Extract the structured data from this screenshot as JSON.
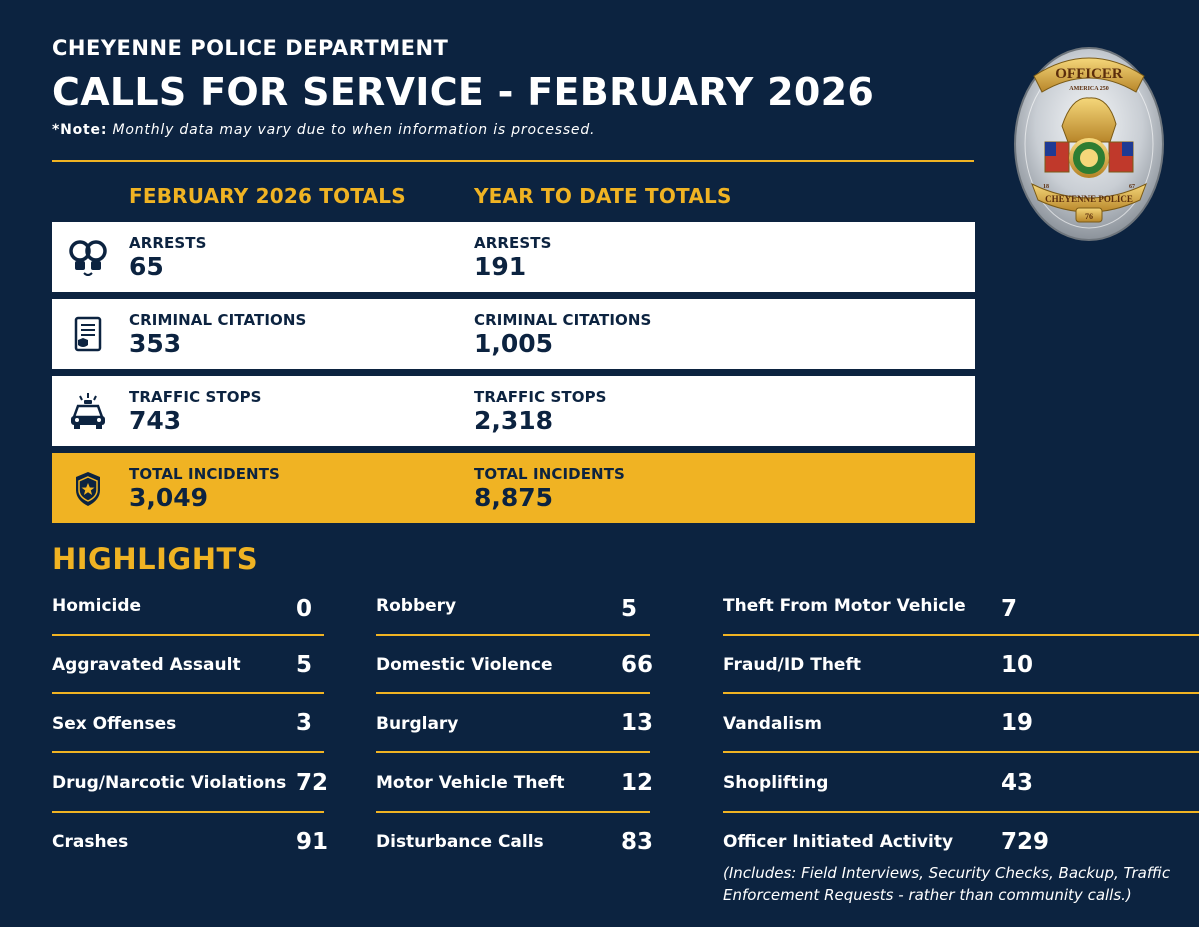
{
  "header": {
    "department": "CHEYENNE POLICE DEPARTMENT",
    "title": "CALLS FOR SERVICE - FEBRUARY 2026",
    "note_label": "*Note:",
    "note_text": "Monthly data may vary due to when information is processed."
  },
  "badge": {
    "top_text": "OFFICER",
    "sub_text": "AMERICA 250",
    "bottom_text": "CHEYENNE POLICE",
    "number": "76",
    "left_year": "18",
    "right_year": "67"
  },
  "totals": {
    "month_heading": "FEBRUARY 2026 TOTALS",
    "ytd_heading": "YEAR TO DATE TOTALS",
    "rows": [
      {
        "icon": "handcuffs-icon",
        "month_label": "ARRESTS",
        "month_value": "65",
        "ytd_label": "ARRESTS",
        "ytd_value": "191"
      },
      {
        "icon": "citation-document-icon",
        "month_label": "CRIMINAL CITATIONS",
        "month_value": "353",
        "ytd_label": "CRIMINAL CITATIONS",
        "ytd_value": "1,005"
      },
      {
        "icon": "police-car-icon",
        "month_label": "TRAFFIC STOPS",
        "month_value": "743",
        "ytd_label": "TRAFFIC STOPS",
        "ytd_value": "2,318"
      },
      {
        "icon": "police-shield-icon",
        "month_label": "TOTAL INCIDENTS",
        "month_value": "3,049",
        "ytd_label": "TOTAL INCIDENTS",
        "ytd_value": "8,875"
      }
    ]
  },
  "highlights": {
    "title": "HIGHLIGHTS",
    "col1": [
      {
        "label": "Homicide",
        "value": "0"
      },
      {
        "label": "Aggravated Assault",
        "value": "5"
      },
      {
        "label": "Sex Offenses",
        "value": "3"
      },
      {
        "label": "Drug/Narcotic Violations",
        "value": "72"
      },
      {
        "label": "Crashes",
        "value": "91"
      }
    ],
    "col2": [
      {
        "label": "Robbery",
        "value": "5"
      },
      {
        "label": "Domestic Violence",
        "value": "66"
      },
      {
        "label": "Burglary",
        "value": "13"
      },
      {
        "label": "Motor Vehicle Theft",
        "value": "12"
      },
      {
        "label": "Disturbance Calls",
        "value": "83"
      }
    ],
    "col3": [
      {
        "label": "Theft From Motor Vehicle",
        "value": "7"
      },
      {
        "label": "Fraud/ID Theft",
        "value": "10"
      },
      {
        "label": "Vandalism",
        "value": "19"
      },
      {
        "label": "Shoplifting",
        "value": "43"
      },
      {
        "label": "Officer Initiated Activity",
        "value": "729"
      }
    ],
    "footnote": "(Includes: Field Interviews, Security Checks, Backup, Traffic Enforcement Requests - rather than community calls.)"
  },
  "colors": {
    "navy": "#0c2340",
    "gold": "#f0b323",
    "white": "#ffffff"
  }
}
